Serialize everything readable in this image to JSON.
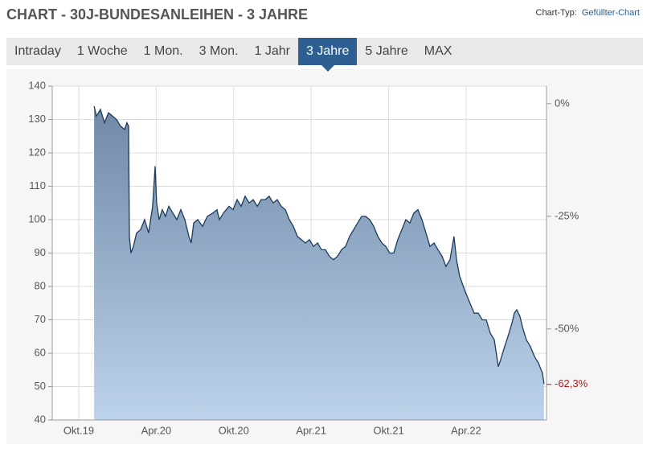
{
  "header": {
    "title": "CHART - 30J-BUNDESANLEIHEN - 3 JAHRE",
    "chart_type_label": "Chart-Typ:",
    "chart_type": "Gefüllter-Chart"
  },
  "tabs": {
    "items": [
      "Intraday",
      "1 Woche",
      "1 Mon.",
      "3 Mon.",
      "1 Jahr",
      "3 Jahre",
      "5 Jahre",
      "MAX"
    ],
    "active": 5
  },
  "chart_data": {
    "type": "area",
    "line_color": "#1f3a5a",
    "fill_top": "#6f89a7",
    "fill_bottom": "#bcd3ea",
    "grid": true,
    "xlim": [
      2019.579,
      2022.769
    ],
    "xticks": [
      {
        "value": 2019.75,
        "label": "Okt.19"
      },
      {
        "value": 2020.25,
        "label": "Apr.20"
      },
      {
        "value": 2020.75,
        "label": "Okt.20"
      },
      {
        "value": 2021.25,
        "label": "Apr.21"
      },
      {
        "value": 2021.75,
        "label": "Okt.21"
      },
      {
        "value": 2022.25,
        "label": "Apr.22"
      }
    ],
    "ylim": [
      40,
      140
    ],
    "yticks": [
      40,
      50,
      60,
      70,
      80,
      90,
      100,
      110,
      120,
      130,
      140
    ],
    "y2lim": [
      -70.2,
      3.9
    ],
    "y2ticks": [
      {
        "value": 0,
        "label": "0%"
      },
      {
        "value": -25,
        "label": "-25%"
      },
      {
        "value": -50,
        "label": "-50%"
      }
    ],
    "last_change": {
      "value": -62.3,
      "label": "-62,3%",
      "color": "#b01c1c"
    },
    "x": [
      2019.849,
      2019.864,
      2019.89,
      2019.916,
      2019.942,
      2019.968,
      2019.994,
      2020.02,
      2020.046,
      2020.061,
      2020.072,
      2020.077,
      2020.087,
      2020.103,
      2020.123,
      2020.149,
      2020.175,
      2020.201,
      2020.227,
      2020.243,
      2020.253,
      2020.269,
      2020.289,
      2020.31,
      2020.331,
      2020.357,
      2020.383,
      2020.409,
      2020.435,
      2020.461,
      2020.476,
      2020.492,
      2020.518,
      2020.549,
      2020.58,
      2020.616,
      2020.642,
      2020.658,
      2020.684,
      2020.72,
      2020.746,
      2020.772,
      2020.798,
      2020.824,
      2020.85,
      2020.876,
      2020.902,
      2020.927,
      2020.953,
      2020.979,
      2021.005,
      2021.031,
      2021.057,
      2021.083,
      2021.109,
      2021.135,
      2021.161,
      2021.187,
      2021.213,
      2021.239,
      2021.265,
      2021.291,
      2021.317,
      2021.342,
      2021.368,
      2021.394,
      2021.42,
      2021.446,
      2021.472,
      2021.498,
      2021.524,
      2021.55,
      2021.576,
      2021.602,
      2021.628,
      2021.654,
      2021.68,
      2021.706,
      2021.731,
      2021.757,
      2021.783,
      2021.809,
      2021.835,
      2021.861,
      2021.887,
      2021.913,
      2021.939,
      2021.965,
      2021.991,
      2022.017,
      2022.043,
      2022.069,
      2022.095,
      2022.12,
      2022.146,
      2022.172,
      2022.188,
      2022.209,
      2022.24,
      2022.266,
      2022.302,
      2022.328,
      2022.354,
      2022.38,
      2022.406,
      2022.432,
      2022.458,
      2022.473,
      2022.499,
      2022.52,
      2022.546,
      2022.561,
      2022.577,
      2022.598,
      2022.613,
      2022.639,
      2022.665,
      2022.691,
      2022.717,
      2022.743,
      2022.753
    ],
    "values": [
      134,
      131,
      133,
      129,
      132,
      131,
      130,
      128,
      127,
      129,
      128,
      95,
      90,
      92,
      96,
      97,
      100,
      96,
      104,
      116,
      105,
      100,
      103,
      101,
      104,
      102,
      100,
      103,
      100,
      95,
      93,
      99,
      100,
      98,
      101,
      102,
      103,
      100,
      102,
      104,
      103,
      106,
      104,
      107,
      105,
      106,
      104,
      106,
      106,
      107,
      105,
      106,
      104,
      103,
      100,
      98,
      95,
      94,
      93,
      94,
      92,
      93,
      91,
      91,
      89,
      88,
      89,
      91,
      92,
      95,
      97,
      99,
      101,
      101,
      100,
      98,
      95,
      93,
      92,
      90,
      90,
      94,
      97,
      100,
      99,
      102,
      103,
      100,
      96,
      92,
      93,
      91,
      89,
      86,
      88,
      95,
      88,
      83,
      79,
      76,
      72,
      72,
      70,
      70,
      66,
      64,
      56,
      58,
      62,
      65,
      69,
      72,
      73,
      71,
      68,
      64,
      62,
      59,
      57,
      54,
      50.8
    ]
  }
}
